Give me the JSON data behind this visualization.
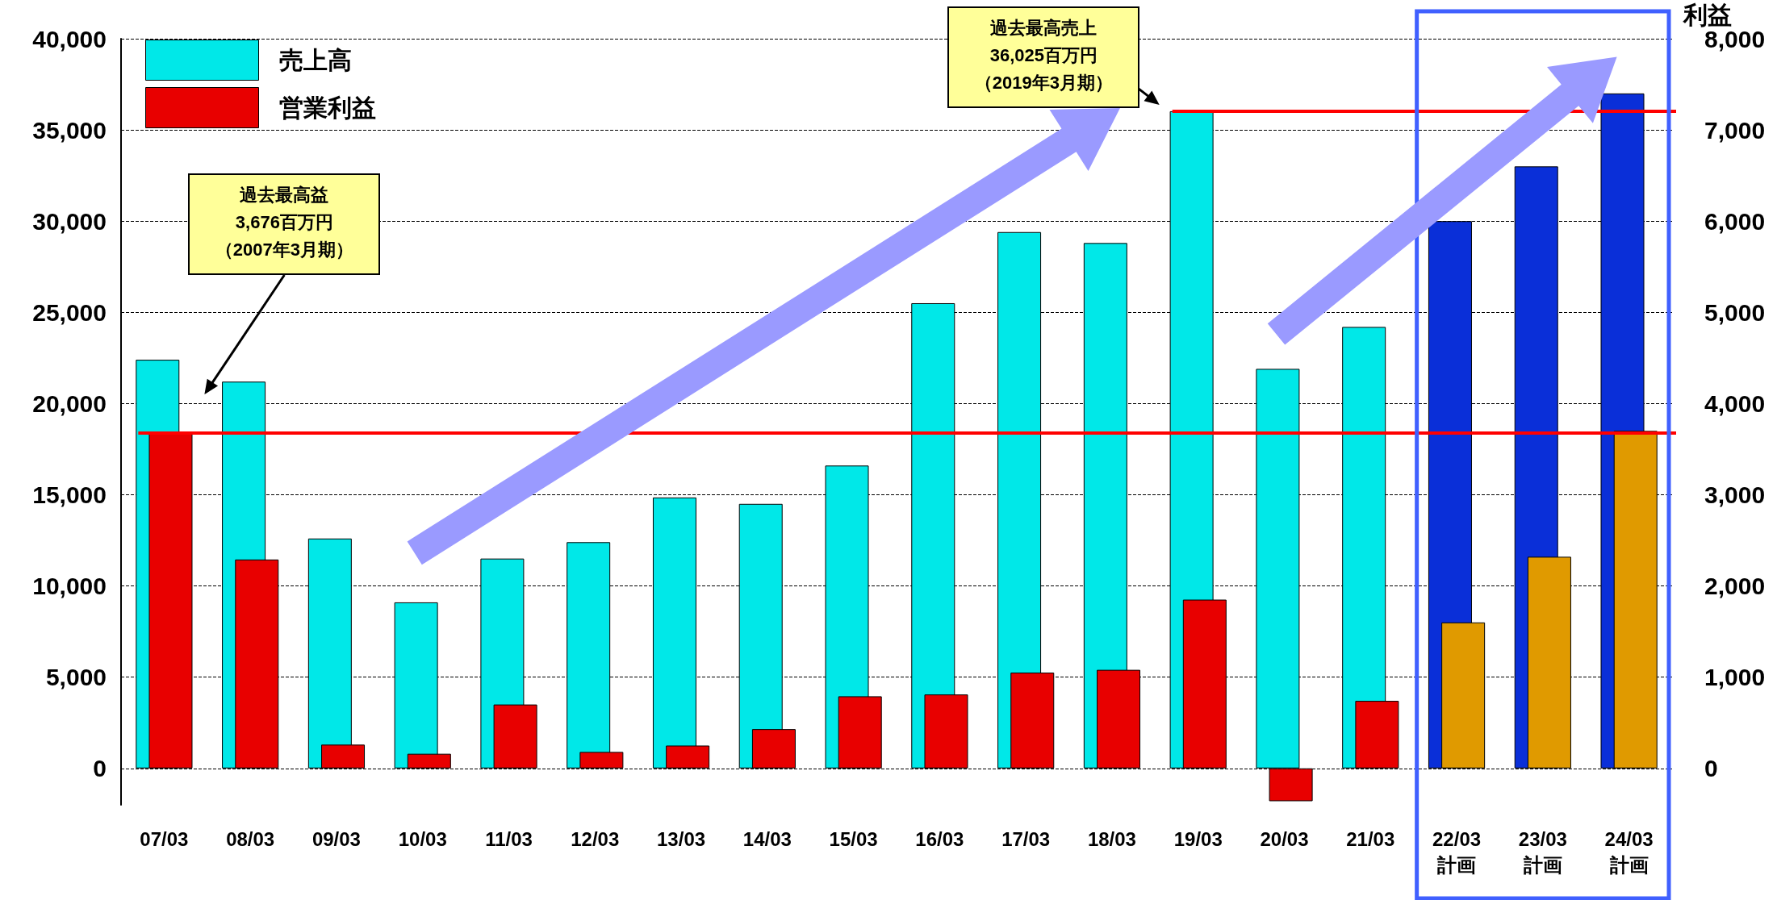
{
  "chart_data": {
    "type": "bar",
    "categories": [
      "07/03",
      "08/03",
      "09/03",
      "10/03",
      "11/03",
      "12/03",
      "13/03",
      "14/03",
      "15/03",
      "16/03",
      "17/03",
      "18/03",
      "19/03",
      "20/03",
      "21/03",
      "22/03\n計画",
      "23/03\n計画",
      "24/03\n計画"
    ],
    "series": [
      {
        "name": "売上高",
        "color": "#00e8e8",
        "colors": [
          "#00e8e8",
          "#00e8e8",
          "#00e8e8",
          "#00e8e8",
          "#00e8e8",
          "#00e8e8",
          "#00e8e8",
          "#00e8e8",
          "#00e8e8",
          "#00e8e8",
          "#00e8e8",
          "#00e8e8",
          "#00e8e8",
          "#00e8e8",
          "#00e8e8",
          "#0a2fd8",
          "#0a2fd8",
          "#0a2fd8"
        ],
        "values": [
          22400,
          21200,
          12600,
          9100,
          11500,
          12400,
          14850,
          14500,
          16600,
          25500,
          29400,
          28800,
          36025,
          21900,
          24200,
          30000,
          33000,
          37000
        ]
      },
      {
        "name": "営業利益",
        "color": "#e80000",
        "axis": "y2",
        "colors": [
          "#e80000",
          "#e80000",
          "#e80000",
          "#e80000",
          "#e80000",
          "#e80000",
          "#e80000",
          "#e80000",
          "#e80000",
          "#e80000",
          "#e80000",
          "#e80000",
          "#e80000",
          "#e80000",
          "#e80000",
          "#e09a00",
          "#e09a00",
          "#e09a00"
        ],
        "values": [
          3676,
          2290,
          260,
          160,
          700,
          180,
          250,
          430,
          790,
          810,
          1050,
          1080,
          1850,
          -360,
          740,
          1600,
          2320,
          3700
        ]
      }
    ],
    "y2label": "利益",
    "ylim": [
      -2000,
      40000
    ],
    "yticks": [
      0,
      {
        "value": 5000,
        "label": "5,000"
      },
      {
        "value": 10000,
        "label": "10,000"
      },
      {
        "value": 15000,
        "label": "15,000"
      },
      {
        "value": 20000,
        "label": "20,000"
      },
      {
        "value": 25000,
        "label": "25,000"
      },
      {
        "value": 30000,
        "label": "30,000"
      },
      {
        "value": 35000,
        "label": "35,000"
      },
      {
        "value": 40000,
        "label": "40,000"
      }
    ],
    "y2lim": [
      -400,
      8000
    ],
    "y2ticks": [
      0,
      {
        "value": 1000,
        "label": "1,000"
      },
      {
        "value": 2000,
        "label": "2,000"
      },
      {
        "value": 3000,
        "label": "3,000"
      },
      {
        "value": 4000,
        "label": "4,000"
      },
      {
        "value": 5000,
        "label": "5,000"
      },
      {
        "value": 6000,
        "label": "6,000"
      },
      {
        "value": 7000,
        "label": "7,000"
      },
      {
        "value": 8000,
        "label": "8,000"
      }
    ],
    "ref_lines": [
      {
        "axis": "y",
        "value": 36025,
        "color": "#ff0000"
      },
      {
        "axis": "y2",
        "value": 3676,
        "color": "#ff0000"
      }
    ],
    "annotations": [
      "過去最高売上",
      "36,025百万円",
      "（2019年3月期）",
      "過去最高益",
      "3,676百万円",
      "（2007年3月期）"
    ],
    "grid": "y",
    "legend": "top left"
  }
}
